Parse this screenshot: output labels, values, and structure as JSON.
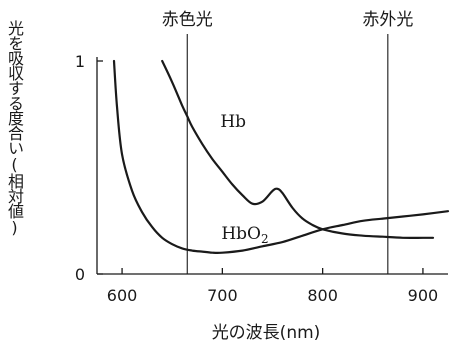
{
  "chart_data": {
    "type": "line",
    "xlabel": "光の波長(nm)",
    "ylabel": "光を吸収する度合い(相対値)",
    "xlim": [
      575,
      925
    ],
    "ylim": [
      0,
      1
    ],
    "x_ticks": [
      600,
      700,
      800,
      900
    ],
    "y_ticks": [
      0,
      1
    ],
    "grid": false,
    "legend": "none",
    "reference_lines": [
      {
        "label": "赤色光",
        "x": 665
      },
      {
        "label": "赤外光",
        "x": 865
      }
    ],
    "series": [
      {
        "name": "Hb",
        "x": [
          640,
          650,
          660,
          665,
          670,
          680,
          690,
          700,
          710,
          720,
          730,
          740,
          750,
          755,
          760,
          770,
          780,
          790,
          800,
          820,
          840,
          860,
          880,
          900,
          910
        ],
        "y": [
          1.0,
          0.9,
          0.79,
          0.74,
          0.69,
          0.61,
          0.54,
          0.48,
          0.42,
          0.37,
          0.33,
          0.34,
          0.39,
          0.4,
          0.38,
          0.31,
          0.26,
          0.23,
          0.21,
          0.19,
          0.18,
          0.175,
          0.17,
          0.17,
          0.17
        ]
      },
      {
        "name": "HbO",
        "name_subscript": "2",
        "x": [
          592,
          595,
          600,
          610,
          620,
          630,
          640,
          650,
          660,
          670,
          680,
          690,
          700,
          720,
          740,
          760,
          780,
          800,
          820,
          840,
          860,
          880,
          900,
          925
        ],
        "y": [
          1.0,
          0.78,
          0.56,
          0.39,
          0.29,
          0.22,
          0.17,
          0.14,
          0.12,
          0.11,
          0.105,
          0.1,
          0.1,
          0.11,
          0.13,
          0.15,
          0.18,
          0.21,
          0.23,
          0.25,
          0.26,
          0.27,
          0.28,
          0.295
        ]
      }
    ]
  }
}
